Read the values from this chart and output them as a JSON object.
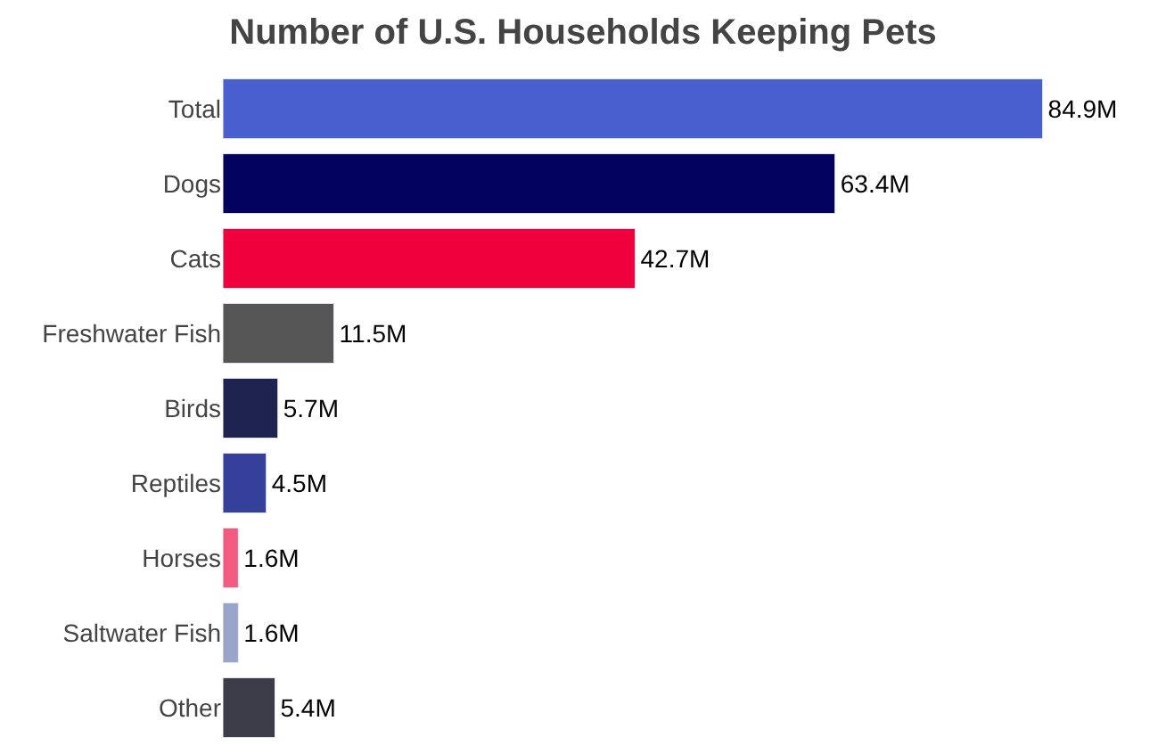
{
  "chart_data": {
    "type": "bar",
    "orientation": "horizontal",
    "title": "Number of U.S. Households Keeping Pets",
    "categories": [
      "Total",
      "Dogs",
      "Cats",
      "Freshwater Fish",
      "Birds",
      "Reptiles",
      "Horses",
      "Saltwater Fish",
      "Other"
    ],
    "values": [
      84.9,
      63.4,
      42.7,
      11.5,
      5.7,
      4.5,
      1.6,
      1.6,
      5.4
    ],
    "value_labels": [
      "84.9M",
      "63.4M",
      "42.7M",
      "11.5M",
      "5.7M",
      "4.5M",
      "1.6M",
      "1.6M",
      "5.4M"
    ],
    "colors": [
      "#4a5fcf",
      "#03035f",
      "#f0003c",
      "#555555",
      "#1f2350",
      "#34409a",
      "#f25a80",
      "#9aa3c8",
      "#3d3d4a"
    ]
  }
}
